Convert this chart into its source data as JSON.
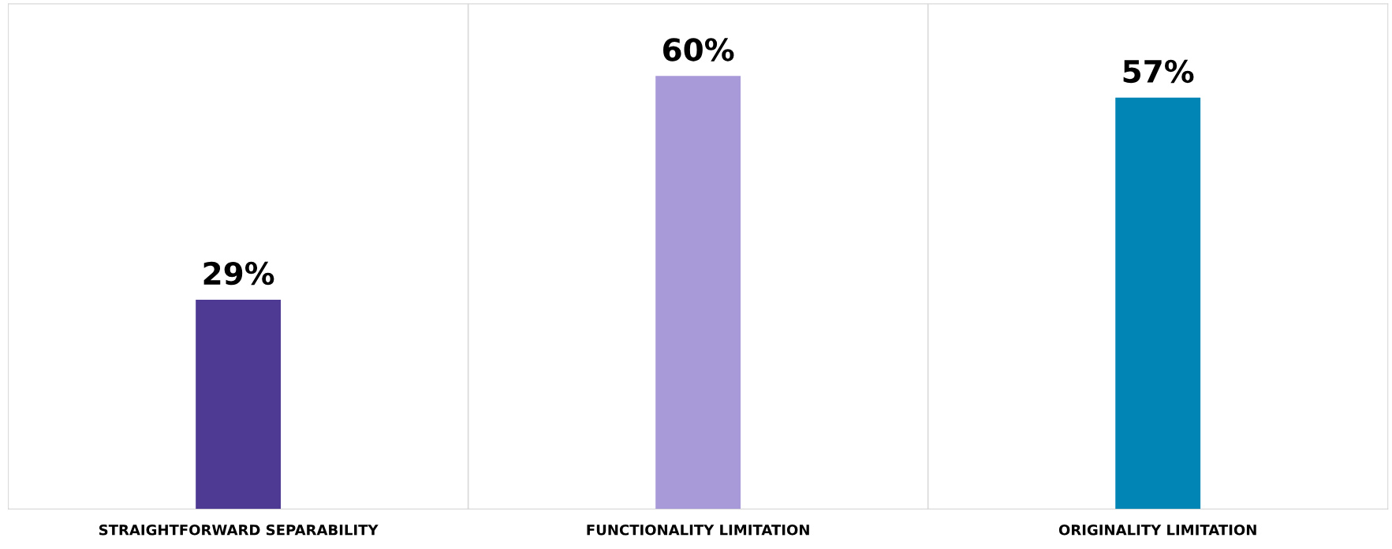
{
  "chart_data": {
    "type": "bar",
    "categories": [
      "STRAIGHTFORWARD SEPARABILITY",
      "FUNCTIONALITY LIMITATION",
      "ORIGINALITY LIMITATION"
    ],
    "values": [
      29,
      60,
      57
    ],
    "colors": [
      "#4e3a93",
      "#a89ad8",
      "#0085b5"
    ],
    "value_labels": [
      "29%",
      "60%",
      "57%"
    ],
    "ylim": [
      0,
      70
    ],
    "tick_labels": "x",
    "grid": "x"
  }
}
